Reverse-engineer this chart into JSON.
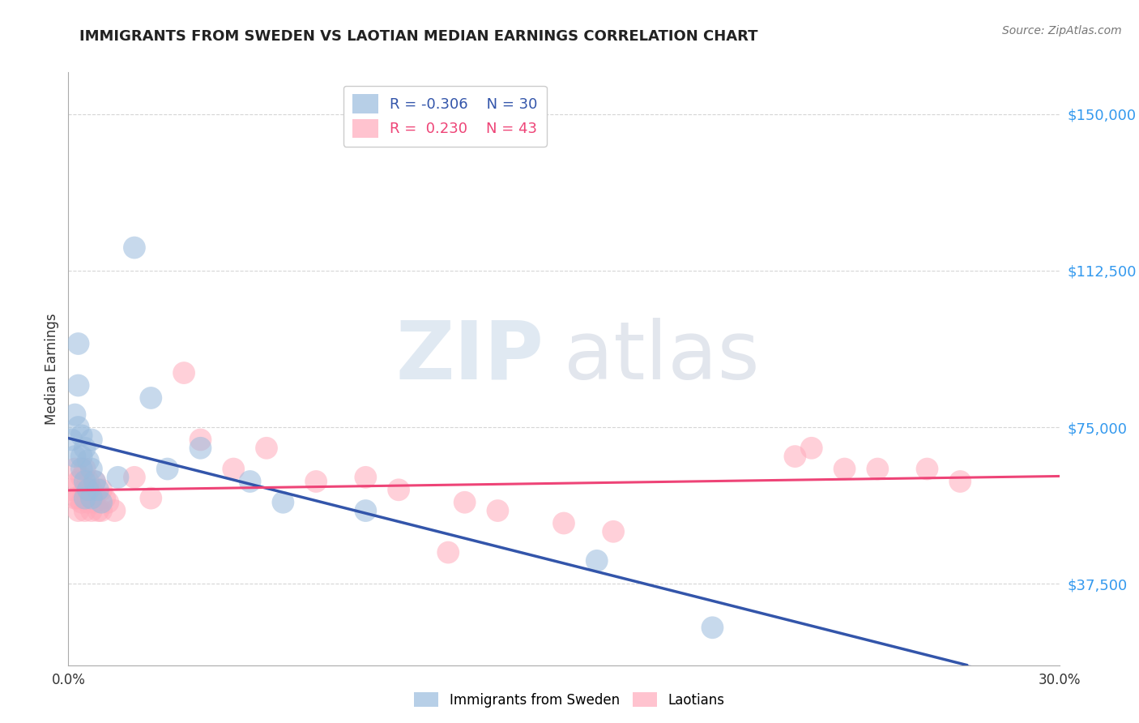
{
  "title": "IMMIGRANTS FROM SWEDEN VS LAOTIAN MEDIAN EARNINGS CORRELATION CHART",
  "source_text": "Source: ZipAtlas.com",
  "ylabel": "Median Earnings",
  "xlim": [
    0.0,
    0.3
  ],
  "ylim": [
    18000,
    160000
  ],
  "yticks": [
    37500,
    75000,
    112500,
    150000
  ],
  "ytick_labels": [
    "$37,500",
    "$75,000",
    "$112,500",
    "$150,000"
  ],
  "xticks": [
    0.0,
    0.05,
    0.1,
    0.15,
    0.2,
    0.25,
    0.3
  ],
  "xtick_labels": [
    "0.0%",
    "",
    "",
    "",
    "",
    "",
    "30.0%"
  ],
  "blue_R": -0.306,
  "blue_N": 30,
  "pink_R": 0.23,
  "pink_N": 43,
  "blue_color": "#99BBDD",
  "pink_color": "#FFAABB",
  "blue_line_color": "#3355AA",
  "pink_line_color": "#EE4477",
  "background_color": "#FFFFFF",
  "grid_color": "#BBBBBB",
  "watermark_zip": "ZIP",
  "watermark_atlas": "atlas",
  "legend_label_blue": "Immigrants from Sweden",
  "legend_label_pink": "Laotians",
  "title_fontsize": 13,
  "ytick_color": "#3399EE",
  "blue_x": [
    0.001,
    0.002,
    0.002,
    0.003,
    0.003,
    0.003,
    0.004,
    0.004,
    0.004,
    0.005,
    0.005,
    0.005,
    0.006,
    0.006,
    0.007,
    0.007,
    0.007,
    0.008,
    0.009,
    0.01,
    0.015,
    0.02,
    0.025,
    0.03,
    0.04,
    0.055,
    0.065,
    0.09,
    0.16,
    0.195
  ],
  "blue_y": [
    72000,
    68000,
    78000,
    95000,
    85000,
    75000,
    73000,
    68000,
    65000,
    70000,
    62000,
    58000,
    67000,
    60000,
    72000,
    65000,
    58000,
    62000,
    60000,
    57000,
    63000,
    118000,
    82000,
    65000,
    70000,
    62000,
    57000,
    55000,
    43000,
    27000
  ],
  "pink_x": [
    0.001,
    0.002,
    0.002,
    0.003,
    0.003,
    0.003,
    0.004,
    0.004,
    0.005,
    0.005,
    0.005,
    0.006,
    0.006,
    0.007,
    0.007,
    0.008,
    0.008,
    0.009,
    0.01,
    0.01,
    0.011,
    0.012,
    0.014,
    0.02,
    0.025,
    0.035,
    0.04,
    0.05,
    0.06,
    0.075,
    0.09,
    0.1,
    0.115,
    0.12,
    0.13,
    0.15,
    0.165,
    0.22,
    0.225,
    0.235,
    0.245,
    0.26,
    0.27
  ],
  "pink_y": [
    60000,
    65000,
    58000,
    62000,
    58000,
    55000,
    63000,
    57000,
    65000,
    60000,
    55000,
    62000,
    57000,
    60000,
    55000,
    62000,
    57000,
    55000,
    60000,
    55000,
    58000,
    57000,
    55000,
    63000,
    58000,
    88000,
    72000,
    65000,
    70000,
    62000,
    63000,
    60000,
    45000,
    57000,
    55000,
    52000,
    50000,
    68000,
    70000,
    65000,
    65000,
    65000,
    62000
  ]
}
